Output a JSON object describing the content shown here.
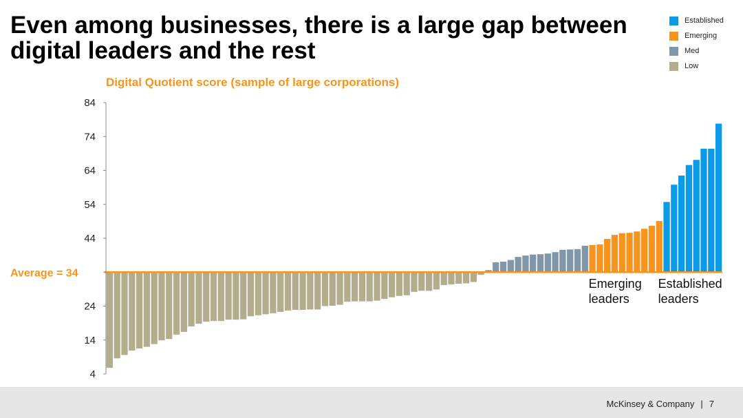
{
  "title": "Even among businesses, there is a large gap between digital leaders and the rest",
  "subtitle": "Digital Quotient score (sample of large corporations)",
  "legend": [
    {
      "label": "Established",
      "color": "#0a9ae8"
    },
    {
      "label": "Emerging",
      "color": "#f7941d"
    },
    {
      "label": "Med",
      "color": "#7f97a8"
    },
    {
      "label": "Low",
      "color": "#b3ad8d"
    }
  ],
  "average_label": "Average = 34",
  "group_labels": {
    "emerging": [
      "Emerging",
      "leaders"
    ],
    "established": [
      "Established",
      "leaders"
    ]
  },
  "footer": {
    "company": "McKinsey & Company",
    "separator": "|",
    "page": "7"
  },
  "chart_data": {
    "type": "bar",
    "title": "Digital Quotient score (sample of large corporations)",
    "xlabel": "",
    "ylabel": "",
    "ylim": [
      4,
      84
    ],
    "yticks": [
      4,
      14,
      24,
      34,
      44,
      54,
      64,
      74,
      84
    ],
    "ytick_labels": [
      "4",
      "14",
      "24",
      "",
      "44",
      "54",
      "64",
      "74",
      "84"
    ],
    "baseline": 34,
    "average": 34,
    "colors": {
      "Established": "#0a9ae8",
      "Emerging": "#f7941d",
      "Med": "#7f97a8",
      "Low": "#b3ad8d"
    },
    "series": [
      {
        "name": "Low",
        "values": [
          5.8,
          8.6,
          9.6,
          10.9,
          11.5,
          12.0,
          12.8,
          13.9,
          14.3,
          15.6,
          16.4,
          18.0,
          18.8,
          19.4,
          19.6,
          19.6,
          20.0,
          20.0,
          20.1,
          21.0,
          21.3,
          21.6,
          21.9,
          22.3,
          22.7,
          22.9,
          22.9,
          23.0,
          23.0,
          24.0,
          24.1,
          24.4,
          25.3,
          25.4,
          25.4,
          25.4,
          25.6,
          26.1,
          26.6,
          27.0,
          27.2,
          28.2,
          28.5,
          28.5,
          28.9,
          30.2,
          30.4,
          30.6,
          30.7,
          31.1,
          33.2
        ]
      },
      {
        "name": "Med",
        "values": [
          34.6,
          36.9,
          37.1,
          37.6,
          38.5,
          38.9,
          39.2,
          39.3,
          39.5,
          39.9,
          40.6,
          40.7,
          40.8,
          41.8
        ]
      },
      {
        "name": "Emerging",
        "values": [
          42.0,
          42.2,
          43.8,
          45.0,
          45.5,
          45.6,
          46.0,
          46.8,
          47.7,
          49.1
        ]
      },
      {
        "name": "Established",
        "values": [
          54.7,
          59.8,
          62.5,
          65.6,
          67.1,
          70.4,
          70.4,
          77.8
        ]
      }
    ]
  }
}
